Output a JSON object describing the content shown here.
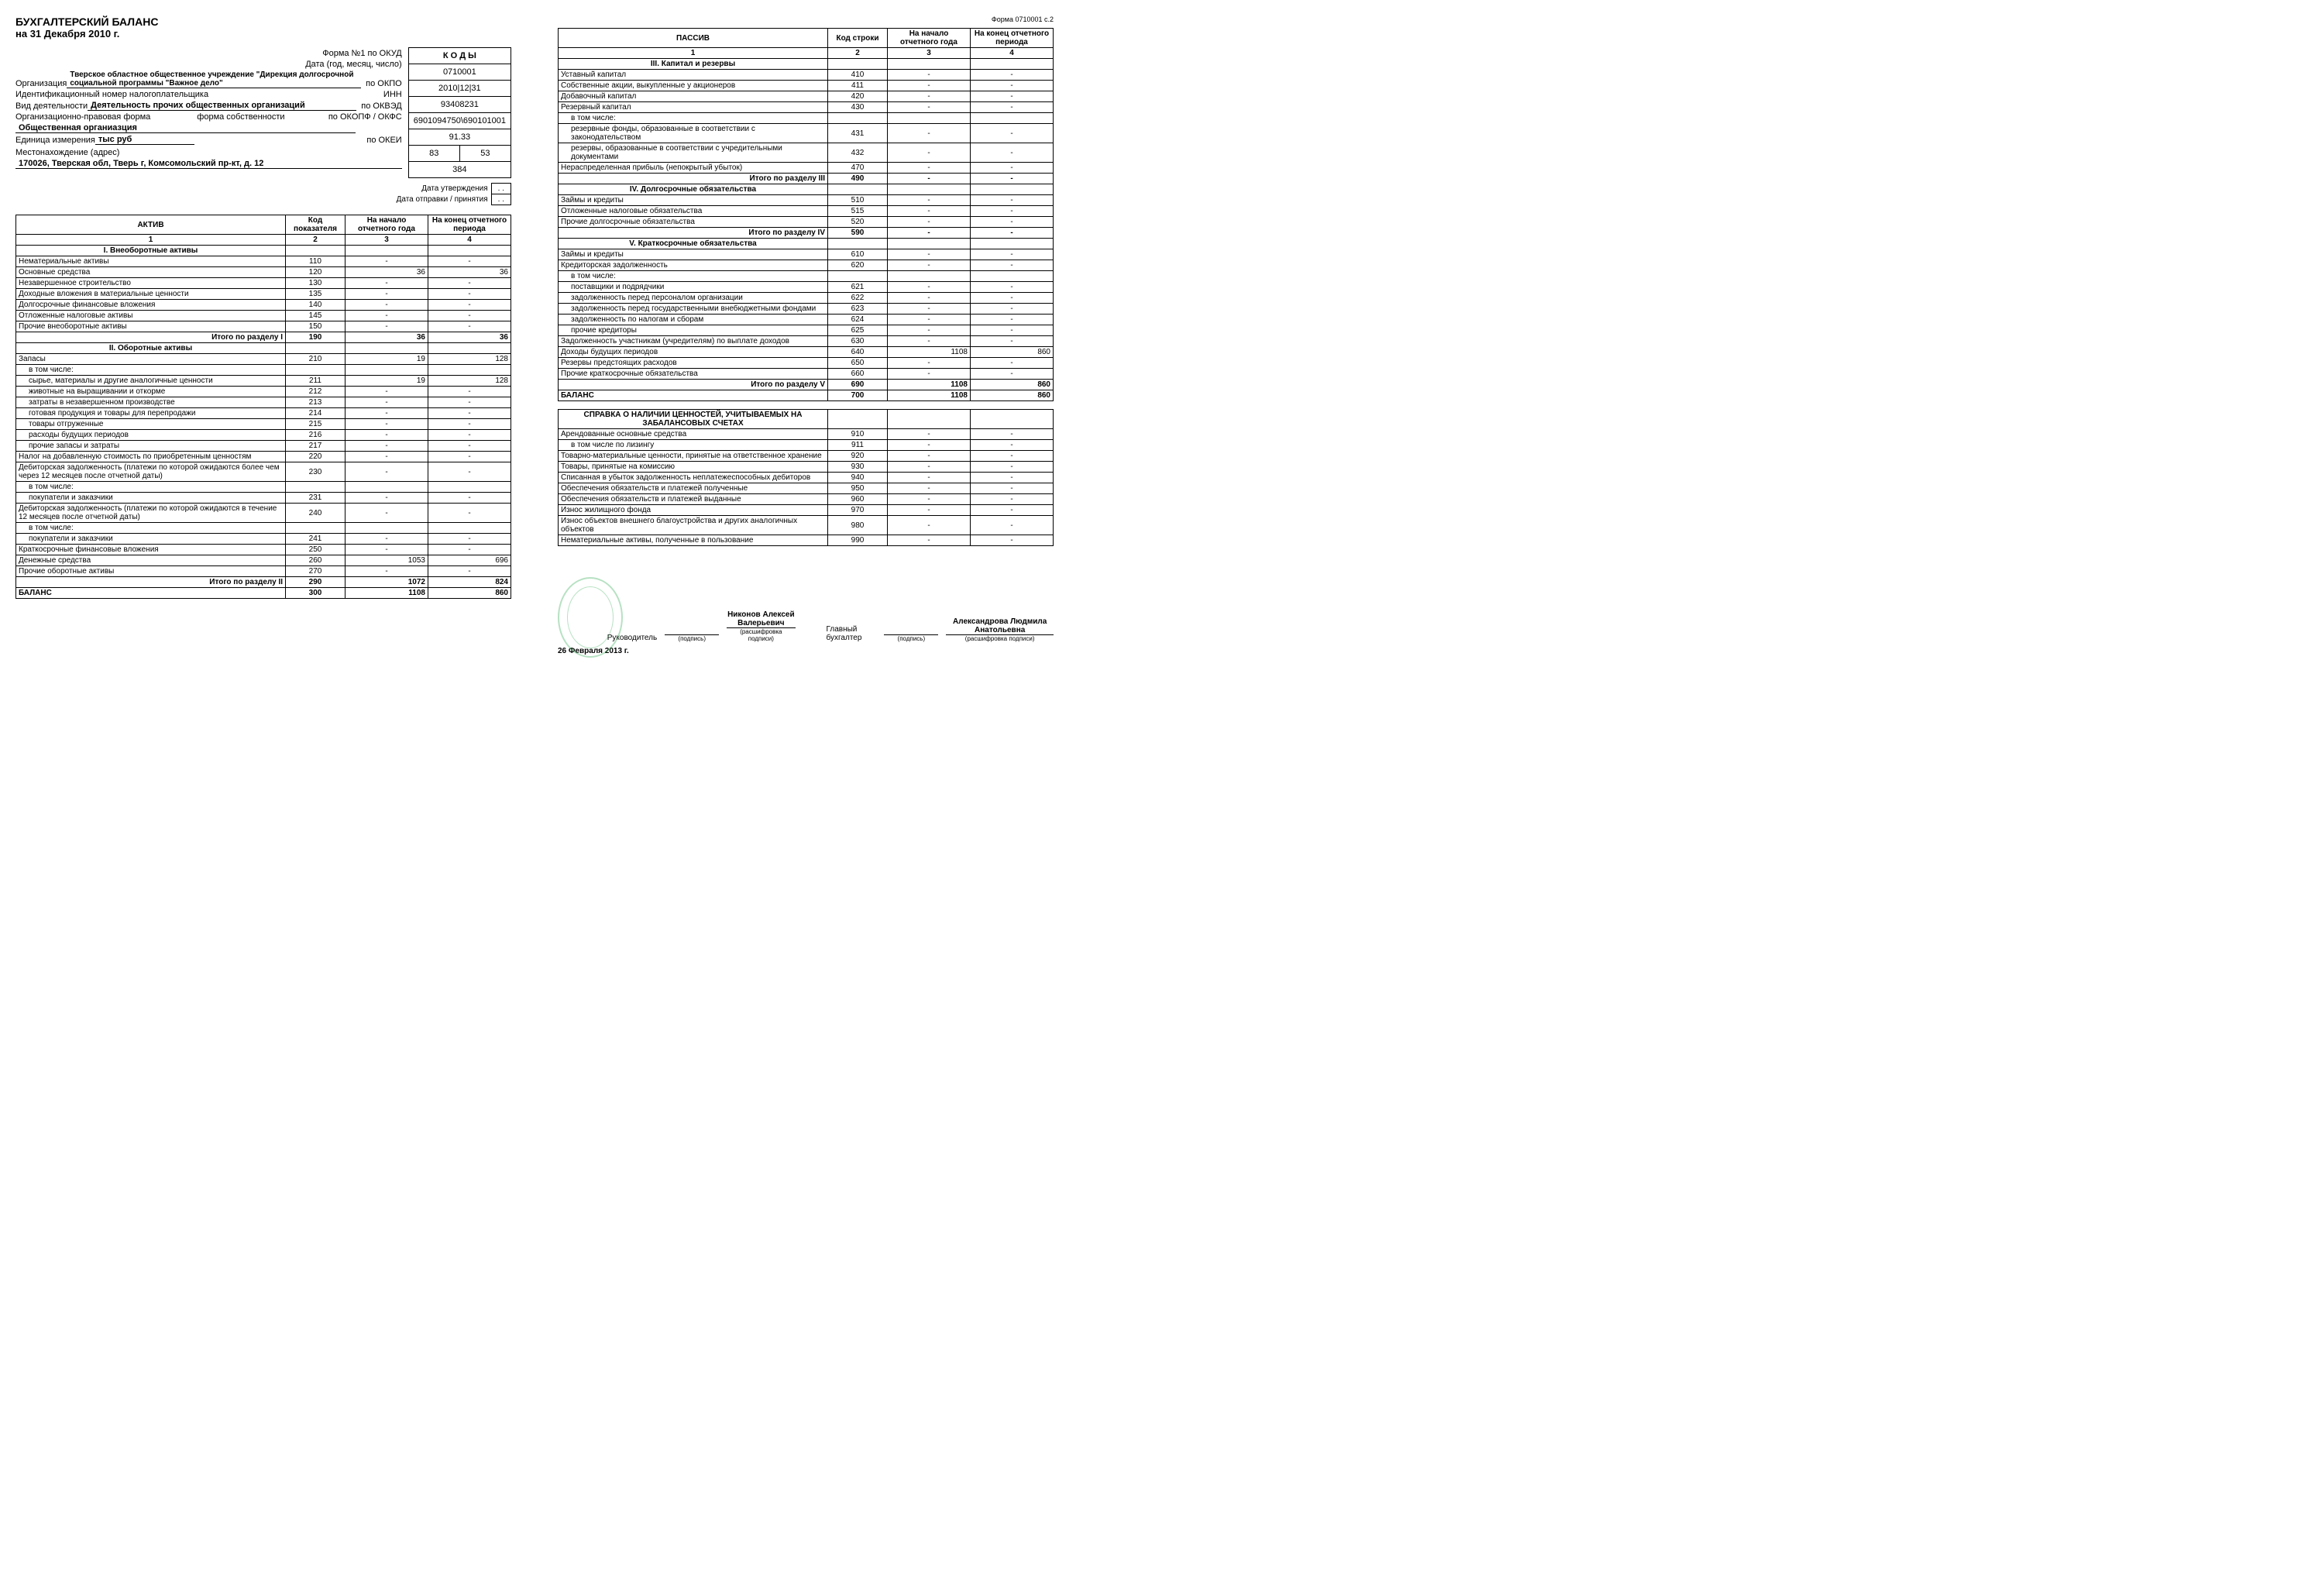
{
  "doc": {
    "title": "БУХГАЛТЕРСКИЙ БАЛАНС",
    "subtitle": "на 31 Декабря 2010 г.",
    "form_note_right": "Форма 0710001 с.2"
  },
  "codes_header": "К О Д Ы",
  "meta": {
    "form_okud_label": "Форма №1 по ОКУД",
    "form_okud": "0710001",
    "date_label": "Дата (год, месяц, число)",
    "date": "2010|12|31",
    "org_label": "Организация",
    "org_value": "Тверское областное общественное учреждение \"Дирекция долгосрочной социальной программы \"Важное дело\"",
    "okpo_label": "по ОКПО",
    "okpo": "93408231",
    "inn_label": "Идентификационный номер налогоплательщика",
    "inn_right": "ИНН",
    "inn": "6901094750\\690101001",
    "activity_label": "Вид деятельности",
    "activity_value": "Деятельность прочих общественных организаций",
    "okved_label": "по ОКВЭД",
    "okved": "91.33",
    "opf_label": "Организационно-правовая форма",
    "fs_label": "форма собственности",
    "okopf_label": "по ОКОПФ / ОКФС",
    "okopf": "83",
    "okfs": "53",
    "opf_value": "Общественная органиазция",
    "unit_label": "Единица измерения",
    "unit_value": "тыс руб",
    "okei_label": "по ОКЕИ",
    "okei": "384",
    "addr_label": "Местонахождение (адрес)",
    "addr_value": "170026, Тверская обл, Тверь г, Комсомольский пр-кт, д. 12",
    "approve_label": "Дата утверждения",
    "approve_val": ". .",
    "sent_label": "Дата отправки / принятия",
    "sent_val": ". ."
  },
  "table_headers": {
    "actives": "АКТИВ",
    "liabilities": "ПАССИВ",
    "code": "Код показателя",
    "code2": "Код строки",
    "begin": "На начало отчетного года",
    "end": "На конец отчетного периода",
    "c1": "1",
    "c2": "2",
    "c3": "3",
    "c4": "4"
  },
  "sections": {
    "s1": "I. Внеоборотные активы",
    "s2": "II. Оборотные активы",
    "s3": "III. Капитал и резервы",
    "s4": "IV. Долгосрочные обязательства",
    "s5": "V. Краткосрочные обязательства",
    "off": "СПРАВКА О НАЛИЧИИ ЦЕННОСТЕЙ, УЧИТЫВАЕМЫХ НА ЗАБАЛАНСОВЫХ СЧЕТАХ"
  },
  "rows_a": [
    {
      "n": "Нематериальные активы",
      "c": "110",
      "b": "-",
      "e": "-"
    },
    {
      "n": "Основные средства",
      "c": "120",
      "b": "36",
      "e": "36"
    },
    {
      "n": "Незавершенное строительство",
      "c": "130",
      "b": "-",
      "e": "-"
    },
    {
      "n": "Доходные вложения в материальные ценности",
      "c": "135",
      "b": "-",
      "e": "-"
    },
    {
      "n": "Долгосрочные финансовые вложения",
      "c": "140",
      "b": "-",
      "e": "-"
    },
    {
      "n": "Отложенные налоговые активы",
      "c": "145",
      "b": "-",
      "e": "-"
    },
    {
      "n": "Прочие внеоборотные активы",
      "c": "150",
      "b": "-",
      "e": "-"
    },
    {
      "n": "Итого по разделу I",
      "c": "190",
      "b": "36",
      "e": "36",
      "total": true
    }
  ],
  "rows_b": [
    {
      "n": "Запасы",
      "c": "210",
      "b": "19",
      "e": "128"
    },
    {
      "n": "в том числе:",
      "c": "",
      "b": "",
      "e": "",
      "ind": 1
    },
    {
      "n": "сырье, материалы и другие аналогичные ценности",
      "c": "211",
      "b": "19",
      "e": "128",
      "ind": 1
    },
    {
      "n": "животные на выращивании и откорме",
      "c": "212",
      "b": "-",
      "e": "-",
      "ind": 1
    },
    {
      "n": "затраты в незавершенном производстве",
      "c": "213",
      "b": "-",
      "e": "-",
      "ind": 1
    },
    {
      "n": "готовая продукция и товары для перепродажи",
      "c": "214",
      "b": "-",
      "e": "-",
      "ind": 1
    },
    {
      "n": "товары отгруженные",
      "c": "215",
      "b": "-",
      "e": "-",
      "ind": 1
    },
    {
      "n": "расходы будущих периодов",
      "c": "216",
      "b": "-",
      "e": "-",
      "ind": 1
    },
    {
      "n": "прочие запасы и затраты",
      "c": "217",
      "b": "-",
      "e": "-",
      "ind": 1
    },
    {
      "n": "Налог на добавленную стоимость по приобретенным ценностям",
      "c": "220",
      "b": "-",
      "e": "-"
    },
    {
      "n": "Дебиторская задолженность (платежи по которой ожидаются более чем через 12 месяцев после отчетной даты)",
      "c": "230",
      "b": "-",
      "e": "-"
    },
    {
      "n": "в том числе:",
      "c": "",
      "b": "",
      "e": "",
      "ind": 1
    },
    {
      "n": "покупатели и заказчики",
      "c": "231",
      "b": "-",
      "e": "-",
      "ind": 1
    },
    {
      "n": "Дебиторская задолженность (платежи по которой ожидаются в течение 12 месяцев после отчетной даты)",
      "c": "240",
      "b": "-",
      "e": "-"
    },
    {
      "n": "в том числе:",
      "c": "",
      "b": "",
      "e": "",
      "ind": 1
    },
    {
      "n": "покупатели и заказчики",
      "c": "241",
      "b": "-",
      "e": "-",
      "ind": 1
    },
    {
      "n": "Краткосрочные финансовые вложения",
      "c": "250",
      "b": "-",
      "e": "-"
    },
    {
      "n": "Денежные средства",
      "c": "260",
      "b": "1053",
      "e": "696"
    },
    {
      "n": "Прочие оборотные активы",
      "c": "270",
      "b": "-",
      "e": "-"
    },
    {
      "n": "Итого по разделу II",
      "c": "290",
      "b": "1072",
      "e": "824",
      "total": true
    },
    {
      "n": "БАЛАНС",
      "c": "300",
      "b": "1108",
      "e": "860",
      "bold": true
    }
  ],
  "rows_p": [
    {
      "sec": "s3"
    },
    {
      "n": "Уставный капитал",
      "c": "410",
      "b": "-",
      "e": "-"
    },
    {
      "n": "Собственные акции, выкупленные у акционеров",
      "c": "411",
      "b": "-",
      "e": "-"
    },
    {
      "n": "Добавочный капитал",
      "c": "420",
      "b": "-",
      "e": "-"
    },
    {
      "n": "Резервный капитал",
      "c": "430",
      "b": "-",
      "e": "-"
    },
    {
      "n": "в том числе:",
      "c": "",
      "b": "",
      "e": "",
      "ind": 1
    },
    {
      "n": "резервные фонды, образованные в соответствии с законодательством",
      "c": "431",
      "b": "-",
      "e": "-",
      "ind": 1
    },
    {
      "n": "резервы, образованные в соответствии с учредительными документами",
      "c": "432",
      "b": "-",
      "e": "-",
      "ind": 1
    },
    {
      "n": "Нераспределенная прибыль (непокрытый убыток)",
      "c": "470",
      "b": "-",
      "e": "-"
    },
    {
      "n": "Итого по разделу III",
      "c": "490",
      "b": "-",
      "e": "-",
      "total": true
    },
    {
      "sec": "s4"
    },
    {
      "n": "Займы и кредиты",
      "c": "510",
      "b": "-",
      "e": "-"
    },
    {
      "n": "Отложенные налоговые обязательства",
      "c": "515",
      "b": "-",
      "e": "-"
    },
    {
      "n": "Прочие долгосрочные обязательства",
      "c": "520",
      "b": "-",
      "e": "-"
    },
    {
      "n": "Итого по разделу IV",
      "c": "590",
      "b": "-",
      "e": "-",
      "total": true
    },
    {
      "sec": "s5"
    },
    {
      "n": "Займы и кредиты",
      "c": "610",
      "b": "-",
      "e": "-"
    },
    {
      "n": "Кредиторская задолженность",
      "c": "620",
      "b": "-",
      "e": "-"
    },
    {
      "n": "в том числе:",
      "c": "",
      "b": "",
      "e": "",
      "ind": 1
    },
    {
      "n": "поставщики и подрядчики",
      "c": "621",
      "b": "-",
      "e": "-",
      "ind": 1
    },
    {
      "n": "задолженность перед персоналом организации",
      "c": "622",
      "b": "-",
      "e": "-",
      "ind": 1
    },
    {
      "n": "задолженность перед государственными внебюджетными фондами",
      "c": "623",
      "b": "-",
      "e": "-",
      "ind": 1
    },
    {
      "n": "задолженность по налогам и сборам",
      "c": "624",
      "b": "-",
      "e": "-",
      "ind": 1
    },
    {
      "n": "прочие кредиторы",
      "c": "625",
      "b": "-",
      "e": "-",
      "ind": 1
    },
    {
      "n": "Задолженность участникам (учредителям) по выплате доходов",
      "c": "630",
      "b": "-",
      "e": "-"
    },
    {
      "n": "Доходы будущих периодов",
      "c": "640",
      "b": "1108",
      "e": "860"
    },
    {
      "n": "Резервы предстоящих расходов",
      "c": "650",
      "b": "-",
      "e": "-"
    },
    {
      "n": "Прочие краткосрочные обязательства",
      "c": "660",
      "b": "-",
      "e": "-"
    },
    {
      "n": "Итого по разделу V",
      "c": "690",
      "b": "1108",
      "e": "860",
      "total": true
    },
    {
      "n": "БАЛАНС",
      "c": "700",
      "b": "1108",
      "e": "860",
      "bold": true
    }
  ],
  "rows_off": [
    {
      "n": "Арендованные основные средства",
      "c": "910",
      "b": "-",
      "e": "-"
    },
    {
      "n": "в том числе по лизингу",
      "c": "911",
      "b": "-",
      "e": "-",
      "ind": 1
    },
    {
      "n": "Товарно-материальные ценности, принятые на ответственное хранение",
      "c": "920",
      "b": "-",
      "e": "-"
    },
    {
      "n": "Товары, принятые на комиссию",
      "c": "930",
      "b": "-",
      "e": "-"
    },
    {
      "n": "Списанная в убыток задолженность неплатежеспособных дебиторов",
      "c": "940",
      "b": "-",
      "e": "-"
    },
    {
      "n": "Обеспечения обязательств и платежей полученные",
      "c": "950",
      "b": "-",
      "e": "-"
    },
    {
      "n": "Обеспечения обязательств и платежей выданные",
      "c": "960",
      "b": "-",
      "e": "-"
    },
    {
      "n": "Износ жилищного фонда",
      "c": "970",
      "b": "-",
      "e": "-"
    },
    {
      "n": "Износ объектов внешнего благоустройства и других аналогичных объектов",
      "c": "980",
      "b": "-",
      "e": "-"
    },
    {
      "n": "Нематериальные активы, полученные в пользование",
      "c": "990",
      "b": "-",
      "e": "-"
    }
  ],
  "sig": {
    "head_label": "Руководитель",
    "head_name": "Никонов Алексей Валерьевич",
    "acc_label": "Главный бухгалтер",
    "acc_name": "Александрова Людмила Анатольевна",
    "sig_caption": "(подпись)",
    "name_caption": "(расшифровка подписи)",
    "date": "26 Февраля 2013 г."
  }
}
